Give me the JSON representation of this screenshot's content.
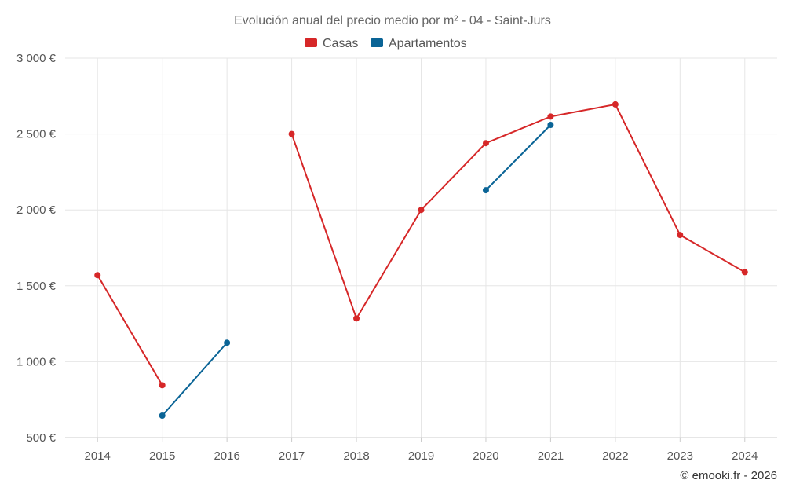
{
  "chart_data": {
    "type": "line",
    "title": "Evolución anual del precio medio por m² - 04 - Saint-Jurs",
    "categories": [
      "2014",
      "2015",
      "2016",
      "2017",
      "2018",
      "2019",
      "2020",
      "2021",
      "2022",
      "2023",
      "2024"
    ],
    "series": [
      {
        "name": "Casas",
        "color": "#d62728",
        "values": [
          1570,
          845,
          null,
          2500,
          1285,
          2000,
          2440,
          2615,
          2695,
          1835,
          1590
        ]
      },
      {
        "name": "Apartamentos",
        "color": "#0a6496",
        "values": [
          null,
          645,
          1125,
          null,
          null,
          null,
          2130,
          2560,
          null,
          null,
          null
        ]
      }
    ],
    "ylim": [
      500,
      3000
    ],
    "yticks": [
      500,
      1000,
      1500,
      2000,
      2500,
      3000
    ],
    "ytick_labels": [
      "500 €",
      "1 000 €",
      "1 500 €",
      "2 000 €",
      "2 500 €",
      "3 000 €"
    ],
    "xlabel": "",
    "ylabel": "",
    "grid": true,
    "legend_position": "top-center"
  },
  "credit": "© emooki.fr - 2026"
}
